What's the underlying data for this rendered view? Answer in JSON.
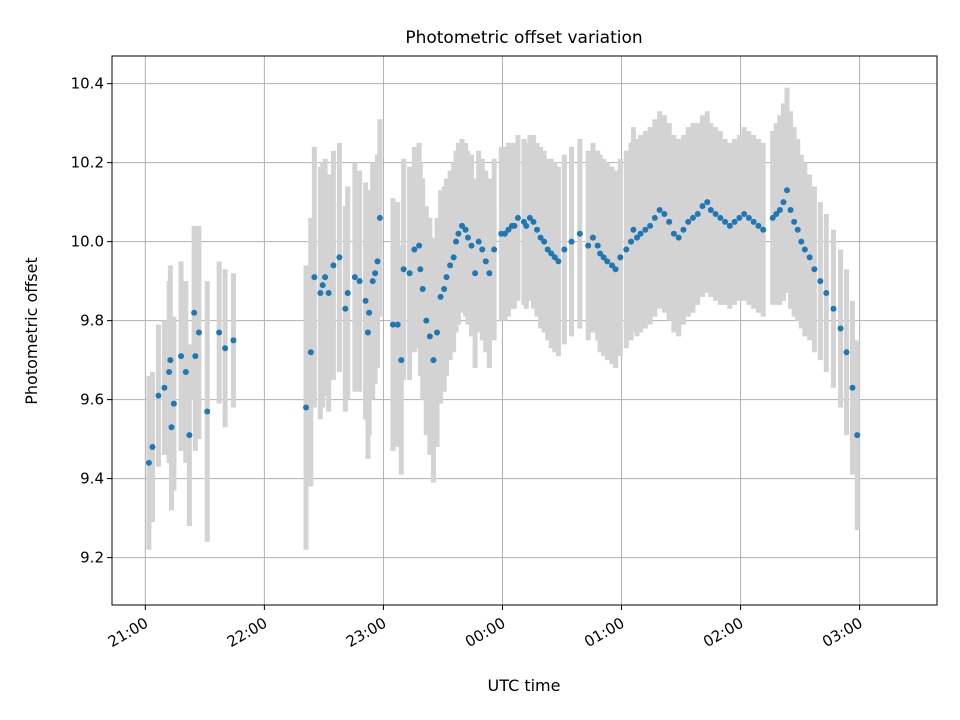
{
  "chart_data": {
    "type": "scatter",
    "title": "Photometric offset variation",
    "xlabel": "UTC time",
    "ylabel": "Photometric offset",
    "x_tick_labels": [
      "21:00",
      "22:00",
      "23:00",
      "00:00",
      "01:00",
      "02:00",
      "03:00"
    ],
    "x_ticks_hours": [
      0,
      1,
      2,
      3,
      4,
      5,
      6
    ],
    "y_ticks": [
      9.2,
      9.4,
      9.6,
      9.8,
      10.0,
      10.2,
      10.4
    ],
    "y_tick_labels": [
      "9.2",
      "9.4",
      "9.6",
      "9.8",
      "10.0",
      "10.2",
      "10.4"
    ],
    "xlim_hours": [
      -0.28,
      6.65
    ],
    "ylim": [
      9.08,
      10.47
    ],
    "grid": true,
    "point_color": "#1f77b4",
    "errorbar_color": "#d3d3d3",
    "series": [
      {
        "x_hours": [
          0.03,
          0.06,
          0.11,
          0.16,
          0.2,
          0.21,
          0.22,
          0.24,
          0.3,
          0.34,
          0.37,
          0.41,
          0.42,
          0.45,
          0.52,
          0.62,
          0.67,
          0.74,
          1.35,
          1.39,
          1.42,
          1.47,
          1.49,
          1.51,
          1.54,
          1.58,
          1.63,
          1.68,
          1.7,
          1.76,
          1.8,
          1.85,
          1.87,
          1.88,
          1.91,
          1.93,
          1.95,
          1.97,
          2.08,
          2.12,
          2.15,
          2.17,
          2.22,
          2.26,
          2.3,
          2.31,
          2.33,
          2.36,
          2.39,
          2.42,
          2.45,
          2.48,
          2.51,
          2.53,
          2.56,
          2.59,
          2.61,
          2.63,
          2.66,
          2.69,
          2.71,
          2.74,
          2.77,
          2.8,
          2.83,
          2.86,
          2.89,
          2.93,
          2.99,
          3.02,
          3.05,
          3.08,
          3.1,
          3.13,
          3.18,
          3.2,
          3.23,
          3.26,
          3.29,
          3.32,
          3.35,
          3.38,
          3.41,
          3.44,
          3.47,
          3.52,
          3.58,
          3.65,
          3.72,
          3.76,
          3.8,
          3.82,
          3.85,
          3.88,
          3.92,
          3.95,
          3.99,
          4.04,
          4.08,
          4.1,
          4.13,
          4.16,
          4.2,
          4.24,
          4.28,
          4.32,
          4.36,
          4.4,
          4.44,
          4.48,
          4.52,
          4.56,
          4.6,
          4.64,
          4.68,
          4.72,
          4.75,
          4.79,
          4.83,
          4.87,
          4.91,
          4.95,
          4.99,
          5.03,
          5.07,
          5.11,
          5.15,
          5.19,
          5.27,
          5.3,
          5.33,
          5.36,
          5.39,
          5.42,
          5.45,
          5.48,
          5.51,
          5.54,
          5.58,
          5.62,
          5.67,
          5.72,
          5.78,
          5.84,
          5.89,
          5.94,
          5.98
        ],
        "y": [
          9.44,
          9.48,
          9.61,
          9.63,
          9.67,
          9.7,
          9.53,
          9.59,
          9.71,
          9.67,
          9.51,
          9.82,
          9.71,
          9.77,
          9.57,
          9.77,
          9.73,
          9.75,
          9.58,
          9.72,
          9.91,
          9.87,
          9.89,
          9.91,
          9.87,
          9.94,
          9.96,
          9.83,
          9.87,
          9.91,
          9.9,
          9.85,
          9.77,
          9.82,
          9.9,
          9.92,
          9.95,
          10.06,
          9.79,
          9.79,
          9.7,
          9.93,
          9.92,
          9.98,
          9.99,
          9.93,
          9.88,
          9.8,
          9.76,
          9.7,
          9.77,
          9.86,
          9.88,
          9.91,
          9.94,
          9.96,
          10.0,
          10.02,
          10.04,
          10.03,
          10.01,
          9.99,
          9.92,
          10.0,
          9.98,
          9.95,
          9.92,
          9.98,
          10.02,
          10.02,
          10.03,
          10.04,
          10.04,
          10.06,
          10.05,
          10.04,
          10.06,
          10.05,
          10.03,
          10.01,
          10.0,
          9.98,
          9.97,
          9.96,
          9.95,
          9.98,
          10.0,
          10.02,
          9.99,
          10.01,
          9.99,
          9.97,
          9.96,
          9.95,
          9.94,
          9.93,
          9.96,
          9.98,
          10.0,
          10.03,
          10.01,
          10.02,
          10.03,
          10.04,
          10.06,
          10.08,
          10.07,
          10.05,
          10.02,
          10.01,
          10.03,
          10.05,
          10.06,
          10.07,
          10.09,
          10.1,
          10.08,
          10.07,
          10.06,
          10.05,
          10.04,
          10.05,
          10.06,
          10.07,
          10.06,
          10.05,
          10.04,
          10.03,
          10.06,
          10.07,
          10.08,
          10.1,
          10.13,
          10.08,
          10.05,
          10.03,
          10.0,
          9.98,
          9.96,
          9.93,
          9.9,
          9.87,
          9.83,
          9.78,
          9.72,
          9.63,
          9.51
        ],
        "err": [
          0.22,
          0.19,
          0.18,
          0.17,
          0.23,
          0.24,
          0.21,
          0.22,
          0.24,
          0.23,
          0.23,
          0.22,
          0.24,
          0.27,
          0.33,
          0.18,
          0.2,
          0.17,
          0.36,
          0.34,
          0.33,
          0.32,
          0.31,
          0.3,
          0.3,
          0.29,
          0.29,
          0.26,
          0.27,
          0.29,
          0.28,
          0.3,
          0.32,
          0.31,
          0.3,
          0.28,
          0.27,
          0.25,
          0.32,
          0.31,
          0.29,
          0.28,
          0.27,
          0.26,
          0.26,
          0.27,
          0.28,
          0.29,
          0.3,
          0.31,
          0.29,
          0.27,
          0.26,
          0.25,
          0.24,
          0.24,
          0.23,
          0.23,
          0.22,
          0.22,
          0.22,
          0.23,
          0.24,
          0.23,
          0.23,
          0.23,
          0.24,
          0.23,
          0.22,
          0.22,
          0.22,
          0.21,
          0.21,
          0.21,
          0.21,
          0.21,
          0.21,
          0.22,
          0.22,
          0.23,
          0.23,
          0.23,
          0.24,
          0.24,
          0.24,
          0.24,
          0.24,
          0.24,
          0.24,
          0.24,
          0.24,
          0.25,
          0.25,
          0.25,
          0.25,
          0.25,
          0.25,
          0.25,
          0.25,
          0.26,
          0.25,
          0.25,
          0.25,
          0.25,
          0.25,
          0.25,
          0.25,
          0.25,
          0.25,
          0.25,
          0.24,
          0.24,
          0.24,
          0.23,
          0.23,
          0.23,
          0.22,
          0.22,
          0.22,
          0.21,
          0.21,
          0.21,
          0.21,
          0.22,
          0.22,
          0.22,
          0.22,
          0.22,
          0.22,
          0.23,
          0.24,
          0.25,
          0.26,
          0.25,
          0.24,
          0.23,
          0.22,
          0.22,
          0.21,
          0.21,
          0.2,
          0.2,
          0.2,
          0.2,
          0.21,
          0.22,
          0.24
        ]
      }
    ]
  }
}
